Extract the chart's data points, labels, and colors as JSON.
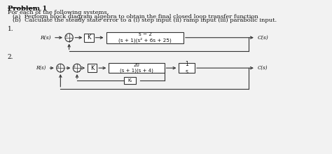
{
  "title": "Problem 1",
  "line1": "For each of the following systems,",
  "line2a": "(a)  Perform block diagram algebra to obtain the final closed loop transfer function",
  "line2b": "(b)  Calculate the steady state error to a (i) step input (ii) ramp input (iii) parabolic input.",
  "label_1": "1.",
  "label_2": "2.",
  "sys1": {
    "R": "R(s)",
    "C": "C(s)",
    "K": "K",
    "G": "s − 2\n(s + 1)(s² + 6s + 25)"
  },
  "sys2": {
    "R": "R(s)",
    "C": "C(s)",
    "K": "K",
    "G1": "20\n(s + 1)(s + 4)",
    "G2": "1\ns",
    "Kt": "Kₜ"
  },
  "bg_color": "#f2f2f2",
  "text_color": "#111111",
  "box_color": "#ffffff",
  "box_edge": "#333333",
  "arrow_color": "#333333",
  "circle_color": "#333333",
  "fontsize_title": 7,
  "fontsize_body": 6.0,
  "fontsize_label": 6.5,
  "fontsize_block": 5.5
}
